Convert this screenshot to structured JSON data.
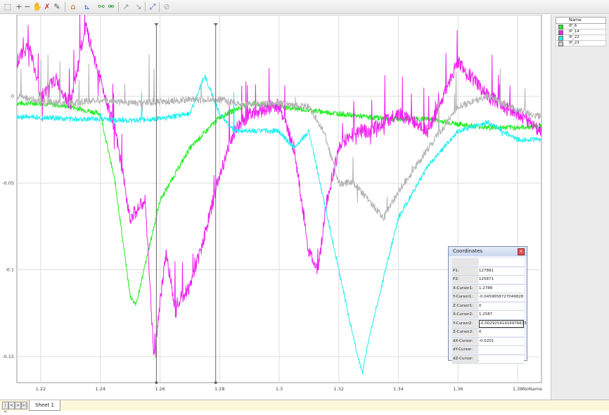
{
  "toolbar": {
    "icons": [
      "select-tool-icon",
      "add-point-icon",
      "remove-icon",
      "hand-pan-icon",
      "delete-x-icon",
      "edit-curve-icon",
      "chart-type-icon",
      "axis-icon",
      "link-icon",
      "unlink-icon",
      "cursor-icon",
      "measure-icon",
      "zoom-fit-icon",
      "lock-icon"
    ]
  },
  "chart_data": {
    "type": "line",
    "x_label": "NoName",
    "xlim": [
      1.212,
      1.388
    ],
    "ylim": [
      -0.165,
      0.047
    ],
    "x_ticks": [
      "1.22",
      "1.24",
      "1.26",
      "1.28",
      "1.3",
      "1.32",
      "1.34",
      "1.36",
      "1.38"
    ],
    "x_tick_values": [
      1.22,
      1.24,
      1.26,
      1.28,
      1.3,
      1.32,
      1.34,
      1.36,
      1.38
    ],
    "y_ticks": [
      "0",
      "-0.05",
      "-0.1",
      "-0.15"
    ],
    "y_tick_values": [
      0,
      -0.05,
      -0.1,
      -0.15
    ],
    "grid": true,
    "cursors": [
      1.2588,
      1.2787
    ],
    "legend_position": "right-panel",
    "series": [
      {
        "name": "IP_6",
        "color": "#22ee22",
        "x": [
          1.212,
          1.22,
          1.23,
          1.24,
          1.245,
          1.25,
          1.252,
          1.26,
          1.27,
          1.28,
          1.29,
          1.3,
          1.31,
          1.32,
          1.33,
          1.34,
          1.35,
          1.36,
          1.37,
          1.38,
          1.388
        ],
        "y": [
          -0.004,
          -0.004,
          -0.006,
          -0.01,
          -0.05,
          -0.115,
          -0.12,
          -0.06,
          -0.03,
          -0.012,
          -0.004,
          -0.006,
          -0.008,
          -0.01,
          -0.012,
          -0.013,
          -0.013,
          -0.016,
          -0.018,
          -0.018,
          -0.017
        ]
      },
      {
        "name": "IP_14",
        "color": "#ee22ee",
        "x": [
          1.212,
          1.216,
          1.22,
          1.225,
          1.23,
          1.235,
          1.24,
          1.245,
          1.25,
          1.255,
          1.258,
          1.262,
          1.265,
          1.27,
          1.275,
          1.28,
          1.285,
          1.29,
          1.3,
          1.305,
          1.31,
          1.313,
          1.316,
          1.32,
          1.325,
          1.33,
          1.34,
          1.35,
          1.36,
          1.37,
          1.38,
          1.388
        ],
        "y": [
          0.02,
          0.03,
          0.0,
          0.01,
          -0.005,
          0.04,
          0.01,
          -0.02,
          -0.07,
          -0.06,
          -0.15,
          -0.09,
          -0.12,
          -0.11,
          -0.08,
          -0.045,
          -0.02,
          -0.01,
          -0.005,
          -0.03,
          -0.09,
          -0.1,
          -0.06,
          -0.03,
          -0.02,
          -0.02,
          -0.01,
          -0.02,
          0.02,
          0.0,
          -0.01,
          -0.02
        ]
      },
      {
        "name": "IP_22",
        "color": "#22eeee",
        "x": [
          1.212,
          1.22,
          1.23,
          1.24,
          1.25,
          1.26,
          1.27,
          1.275,
          1.28,
          1.285,
          1.29,
          1.3,
          1.305,
          1.31,
          1.315,
          1.32,
          1.325,
          1.328,
          1.33,
          1.34,
          1.35,
          1.36,
          1.37,
          1.38,
          1.388
        ],
        "y": [
          -0.012,
          -0.012,
          -0.013,
          -0.013,
          -0.014,
          -0.013,
          -0.01,
          0.012,
          -0.01,
          -0.02,
          -0.02,
          -0.02,
          -0.03,
          -0.02,
          -0.06,
          -0.1,
          -0.14,
          -0.16,
          -0.14,
          -0.07,
          -0.04,
          -0.02,
          -0.015,
          -0.025,
          -0.025
        ]
      },
      {
        "name": "IP_23",
        "color": "#b4b4b4",
        "x": [
          1.212,
          1.22,
          1.23,
          1.24,
          1.25,
          1.26,
          1.27,
          1.28,
          1.29,
          1.3,
          1.31,
          1.315,
          1.32,
          1.325,
          1.33,
          1.335,
          1.34,
          1.35,
          1.36,
          1.37,
          1.38,
          1.388
        ],
        "y": [
          0.0,
          -0.003,
          -0.004,
          -0.002,
          -0.004,
          -0.003,
          -0.002,
          -0.002,
          -0.005,
          -0.004,
          -0.006,
          -0.02,
          -0.05,
          -0.05,
          -0.06,
          -0.07,
          -0.055,
          -0.03,
          -0.006,
          0.0,
          -0.008,
          -0.012
        ]
      }
    ]
  },
  "legend": {
    "header": "Name",
    "items": [
      {
        "label": "IP_6",
        "color": "#22ee22"
      },
      {
        "label": "IP_14",
        "color": "#ee22ee"
      },
      {
        "label": "IP_22",
        "color": "#22eeee"
      },
      {
        "label": "IP_23",
        "color": "#d0d0d0"
      }
    ]
  },
  "coordinates": {
    "title": "Coordinates",
    "rows": [
      {
        "label": "",
        "value": ""
      },
      {
        "label": "P1:",
        "value": "127881"
      },
      {
        "label": "P2:",
        "value": "125871"
      },
      {
        "label": "X-Cursor1:",
        "value": "1.2788"
      },
      {
        "label": "Y-Cursor1:",
        "value": "-0.0459658727049828"
      },
      {
        "label": "Z-Cursor1:",
        "value": "0"
      },
      {
        "label": "X-Cursor2:",
        "value": "1.2587"
      },
      {
        "label": "Y-Cursor2:",
        "value": "-0.00292541916976633"
      },
      {
        "label": "Z-Cursor2:",
        "value": "0"
      },
      {
        "label": "dX-Cursor:",
        "value": "-0.0201"
      },
      {
        "label": "dY-Cursor:",
        "value": ""
      },
      {
        "label": "dZ-Cursor:",
        "value": ""
      }
    ],
    "selected_row": 7
  },
  "sheets": {
    "nav": [
      "|<",
      "<",
      ">",
      ">|"
    ],
    "active": "Sheet 1"
  }
}
